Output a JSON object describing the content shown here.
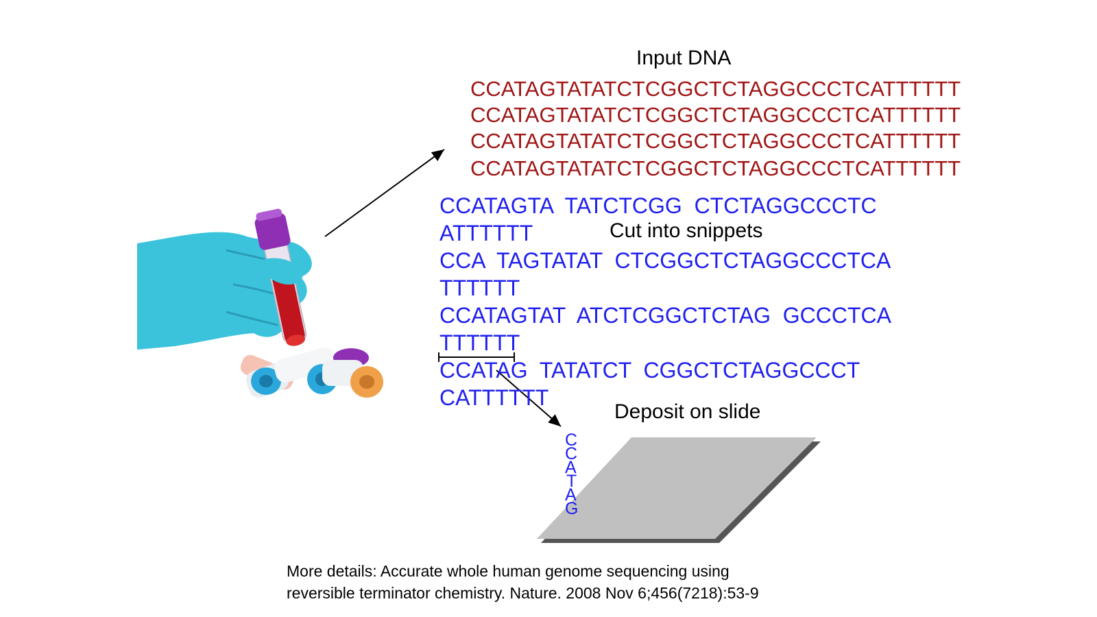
{
  "headings": {
    "input": "Input DNA",
    "cut": "Cut into snippets",
    "deposit": "Deposit on slide"
  },
  "input_dna": {
    "lines": [
      "CCATAGTATATCTCGGCTCTAGGCCCTCATTTTTT",
      "CCATAGTATATCTCGGCTCTAGGCCCTCATTTTTT",
      "CCATAGTATATCTCGGCTCTAGGCCCTCATTTTTT",
      "CCATAGTATATCTCGGCTCTAGGCCCTCATTTTTT"
    ]
  },
  "snippets": {
    "lines": [
      "CCATAGTA  TATCTCGG  CTCTAGGCCCTC",
      "ATTTTTT",
      "CCA  TAGTATAT  CTCGGCTCTAGGCCCTCA",
      "TTTTTT",
      "CCATAGTAT  ATCTCGGCTCTAG  GCCCTCA",
      "TTTTTT",
      "CCATAG  TATATCT  CGGCTCTAGGCCCT",
      "CATTTTTT"
    ]
  },
  "deposited": {
    "letters": [
      "C",
      "C",
      "A",
      "T",
      "A",
      "G"
    ]
  },
  "citation": {
    "line1": "More details: Accurate whole human genome sequencing using",
    "line2": "reversible terminator chemistry. Nature. 2008 Nov 6;456(7218):53-9"
  },
  "colors": {
    "input_dna": "#a01414",
    "snippets": "#1f1ff0",
    "slide_fill": "#c0c0c0",
    "slide_shadow": "#555555",
    "glove": "#3cc3dc",
    "blood": "#c0141e",
    "cap_purple": "#8e2fb4",
    "cap_blue": "#2aa8dc",
    "cap_orange": "#f0a048"
  },
  "icons": {
    "illustration": "gloved-hand-blood-tube-icon"
  }
}
